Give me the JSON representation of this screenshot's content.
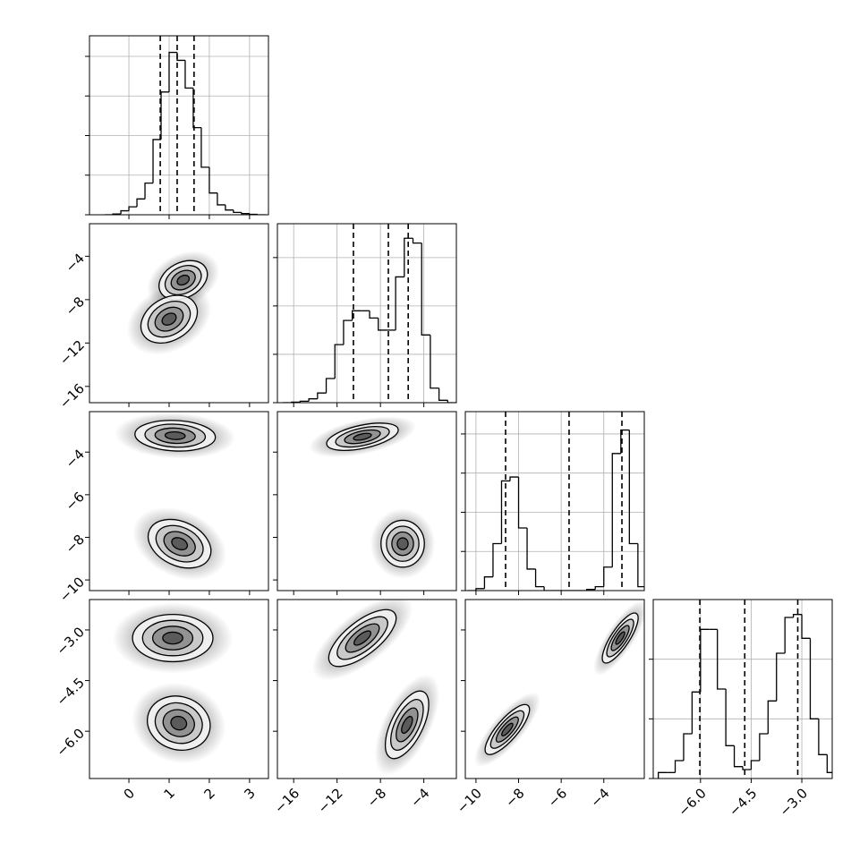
{
  "chart_data": {
    "type": "corner",
    "color": "#000000",
    "grid": true,
    "levels": [
      0.5,
      1,
      1.5,
      2
    ],
    "params": [
      {
        "lim": [
          -0.98,
          3.47
        ],
        "ticks": [
          0,
          1,
          2,
          3
        ],
        "hist_ylim": [
          0,
          4.52
        ],
        "hist_yticks": [
          0,
          1,
          2,
          3,
          4
        ],
        "bins": [
          -0.6,
          -0.4,
          -0.2,
          0,
          0.2,
          0.4,
          0.6,
          0.8,
          1.0,
          1.2,
          1.4,
          1.6,
          1.8,
          2.0,
          2.2,
          2.4,
          2.6,
          2.8,
          3.0,
          3.2,
          3.4
        ],
        "counts": [
          0,
          0.02,
          0.1,
          0.2,
          0.4,
          0.8,
          1.9,
          3.1,
          4.1,
          3.9,
          3.2,
          2.2,
          1.2,
          0.55,
          0.25,
          0.12,
          0.06,
          0.03,
          0.01,
          0
        ],
        "quantiles": [
          0.78,
          1.2,
          1.62
        ]
      },
      {
        "lim": [
          -17.5,
          -1
        ],
        "ticks": [
          {
            "value": -16,
            "label": "−16"
          },
          {
            "value": -12,
            "label": "−12"
          },
          {
            "value": -8,
            "label": "−8"
          },
          {
            "value": -4,
            "label": "−4"
          }
        ],
        "hist_ylim": [
          0,
          3.7
        ],
        "hist_yticks": [
          0,
          1,
          2,
          3
        ],
        "bins": [
          -17,
          -16.2,
          -15.4,
          -14.6,
          -13.8,
          -13,
          -12.2,
          -11.4,
          -10.6,
          -9.8,
          -9,
          -8.2,
          -7.4,
          -6.6,
          -5.8,
          -5,
          -4.2,
          -3.4,
          -2.6,
          -1.8,
          -1
        ],
        "counts": [
          0,
          0.01,
          0.03,
          0.08,
          0.2,
          0.5,
          1.2,
          1.7,
          1.9,
          1.9,
          1.75,
          1.5,
          1.5,
          2.6,
          3.4,
          3.3,
          1.4,
          0.3,
          0.05,
          0
        ],
        "quantiles": [
          -10.49,
          -7.27,
          -5.44
        ]
      },
      {
        "lim": [
          -10.5,
          -2.1
        ],
        "ticks": [
          {
            "value": -10,
            "label": "−10"
          },
          {
            "value": -8,
            "label": "−8"
          },
          {
            "value": -6,
            "label": "−6"
          },
          {
            "value": -4,
            "label": "−4"
          }
        ],
        "hist_ylim": [
          0,
          4.57
        ],
        "hist_yticks": [
          0,
          1,
          2,
          3,
          4
        ],
        "bins": [
          -10.4,
          -10.0,
          -9.6,
          -9.2,
          -8.8,
          -8.4,
          -8.0,
          -7.6,
          -7.2,
          -6.8,
          -6.4,
          -6.0,
          -5.6,
          -5.2,
          -4.8,
          -4.4,
          -4.0,
          -3.6,
          -3.2,
          -2.8,
          -2.4,
          -2.0
        ],
        "counts": [
          0,
          0.05,
          0.35,
          1.2,
          2.8,
          2.9,
          1.6,
          0.55,
          0.1,
          0,
          0,
          0,
          0,
          0,
          0.03,
          0.1,
          0.6,
          3.5,
          4.1,
          1.2,
          0.1
        ],
        "quantiles": [
          -8.61,
          -5.63,
          -3.15
        ]
      },
      {
        "lim": [
          -7.4,
          -2.1
        ],
        "ticks": [
          {
            "value": -6,
            "label": "−6.0"
          },
          {
            "value": -4.5,
            "label": "−4.5"
          },
          {
            "value": -3,
            "label": "−3.0"
          }
        ],
        "hist_ylim": [
          0,
          3.0
        ],
        "hist_yticks": [
          0,
          1,
          2
        ],
        "bins": [
          -7.25,
          -7.0,
          -6.75,
          -6.5,
          -6.25,
          -6.0,
          -5.75,
          -5.5,
          -5.25,
          -5.0,
          -4.75,
          -4.5,
          -4.25,
          -4.0,
          -3.75,
          -3.5,
          -3.25,
          -3.0,
          -2.75,
          -2.5,
          -2.25,
          -2.0
        ],
        "counts": [
          0.1,
          0.1,
          0.3,
          0.75,
          1.45,
          2.5,
          2.5,
          1.5,
          0.55,
          0.2,
          0.15,
          0.3,
          0.75,
          1.3,
          2.1,
          2.7,
          2.75,
          2.35,
          1.0,
          0.4,
          0.1
        ],
        "quantiles": [
          -6.02,
          -4.69,
          -3.12
        ]
      }
    ],
    "pairs": [
      [
        [
          {
            "x": 1.35,
            "y": -6.2,
            "sx": 0.3,
            "sy": 0.9,
            "corr": 0.3
          },
          {
            "x": 1.0,
            "y": -9.8,
            "sx": 0.35,
            "sy": 1.1,
            "corr": 0.3
          }
        ]
      ],
      [
        [
          {
            "x": 1.15,
            "y": -3.23,
            "sx": 0.5,
            "sy": 0.36,
            "corr": -0.1
          },
          {
            "x": 1.26,
            "y": -8.3,
            "sx": 0.39,
            "sy": 0.57,
            "corr": -0.3
          }
        ],
        [
          {
            "x": -9.66,
            "y": -3.28,
            "sx": 1.65,
            "sy": 0.32,
            "corr": 0.5
          },
          {
            "x": -5.95,
            "y": -8.3,
            "sx": 1.0,
            "sy": 0.55,
            "corr": 0
          }
        ]
      ],
      [
        [
          {
            "x": 1.09,
            "y": -3.24,
            "sx": 0.5,
            "sy": 0.35,
            "corr": 0
          },
          {
            "x": 1.24,
            "y": -5.76,
            "sx": 0.39,
            "sy": 0.4,
            "corr": -0.1
          }
        ],
        [
          {
            "x": -9.66,
            "y": -3.24,
            "sx": 1.55,
            "sy": 0.42,
            "corr": 0.7
          },
          {
            "x": -5.55,
            "y": -5.81,
            "sx": 1.0,
            "sy": 0.5,
            "corr": 0.6
          }
        ],
        [
          {
            "x": -3.23,
            "y": -3.24,
            "sx": 0.42,
            "sy": 0.37,
            "corr": 0.8
          },
          {
            "x": -8.53,
            "y": -5.95,
            "sx": 0.52,
            "sy": 0.37,
            "corr": 0.8
          }
        ]
      ]
    ]
  }
}
